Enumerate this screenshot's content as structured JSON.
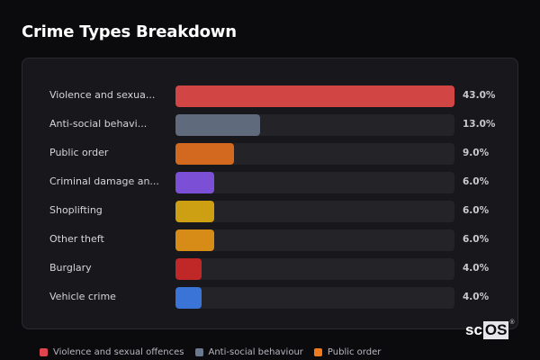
{
  "header": {
    "title": "Crime Types Breakdown"
  },
  "chart_data": {
    "type": "bar",
    "orientation": "horizontal",
    "title": "Crime Types Breakdown",
    "categories": [
      "Violence and sexual offences",
      "Anti-social behaviour",
      "Public order",
      "Criminal damage and arson",
      "Shoplifting",
      "Other theft",
      "Burglary",
      "Vehicle crime"
    ],
    "display_labels": [
      "Violence and sexua...",
      "Anti-social behavi...",
      "Public order",
      "Criminal damage an...",
      "Shoplifting",
      "Other theft",
      "Burglary",
      "Vehicle crime"
    ],
    "values": [
      43.0,
      13.0,
      9.0,
      6.0,
      6.0,
      6.0,
      4.0,
      4.0
    ],
    "value_labels": [
      "43.0%",
      "13.0%",
      "9.0%",
      "6.0%",
      "6.0%",
      "6.0%",
      "4.0%",
      "4.0%"
    ],
    "colors": [
      "#d24545",
      "#5f6b7d",
      "#d2691e",
      "#7b4fd6",
      "#cda013",
      "#d88c18",
      "#c02828",
      "#3a74d6"
    ],
    "unit": "%",
    "xlim": [
      0,
      43
    ],
    "legend": [
      "Violence and sexual offences",
      "Anti-social behaviour",
      "Public order"
    ],
    "legend_position": "bottom"
  },
  "legend": {
    "items": [
      {
        "label": "Violence and sexual offences",
        "color": "#e0444c"
      },
      {
        "label": "Anti-social behaviour",
        "color": "#6a7890"
      },
      {
        "label": "Public order",
        "color": "#f07a1e"
      }
    ]
  },
  "branding": {
    "logo_left": "sc",
    "logo_right": "OS",
    "reg": "®"
  }
}
